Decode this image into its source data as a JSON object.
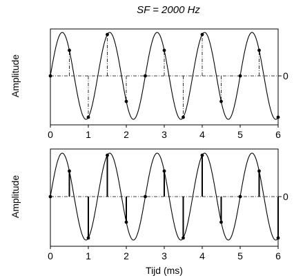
{
  "figure": {
    "title": "SF = 2000 Hz"
  },
  "chart_data": [
    {
      "type": "line",
      "panel": "top",
      "title": "SF = 2000 Hz",
      "ylabel": "Amplitude",
      "xlabel": "",
      "xlim": [
        0,
        6
      ],
      "ylim": [
        -1,
        1
      ],
      "x_ticks": [
        "0",
        "1",
        "2",
        "3",
        "4",
        "5",
        "6"
      ],
      "right_tick": "0",
      "grid": false,
      "signal": {
        "frequency_khz": 0.8,
        "amplitude": 1,
        "phase": "sine"
      },
      "sample_marker_style": "dash-dot",
      "samples_x": [
        0,
        0.5,
        1,
        1.5,
        2,
        2.5,
        3,
        3.5,
        4,
        4.5,
        5,
        5.5,
        6
      ],
      "samples_y": [
        0,
        0.588,
        -0.951,
        0.951,
        -0.588,
        0,
        0.588,
        -0.951,
        0.951,
        -0.588,
        0,
        0.588,
        -0.951
      ]
    },
    {
      "type": "line",
      "panel": "bottom",
      "ylabel": "Amplitude",
      "xlabel": "Tijd (ms)",
      "xlim": [
        0,
        6
      ],
      "ylim": [
        -1,
        1
      ],
      "x_ticks": [
        "0",
        "1",
        "2",
        "3",
        "4",
        "5",
        "6"
      ],
      "right_tick": "0",
      "grid": false,
      "signal": {
        "frequency_khz": 0.8,
        "amplitude": 1,
        "phase": "sine"
      },
      "sample_marker_style": "solid",
      "samples_x": [
        0,
        0.5,
        1,
        1.5,
        2,
        2.5,
        3,
        3.5,
        4,
        4.5,
        5,
        5.5,
        6
      ],
      "samples_y": [
        0,
        0.588,
        -0.951,
        0.951,
        -0.588,
        0,
        0.588,
        -0.951,
        0.951,
        -0.588,
        0,
        0.588,
        -0.951
      ]
    }
  ]
}
